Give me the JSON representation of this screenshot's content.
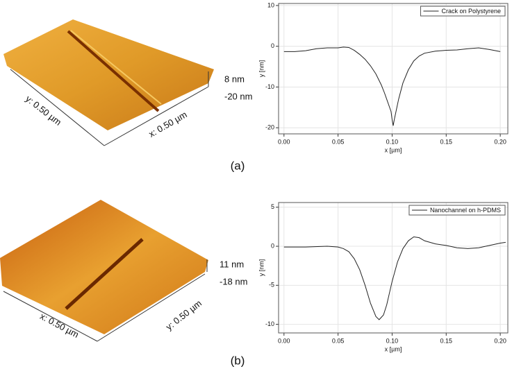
{
  "afm_images": [
    {
      "y_axis": "y: 0.50 µm",
      "x_axis": "x: 0.50 µm",
      "z_max": "8 nm",
      "z_min": "-20 nm",
      "panel": "(a)"
    },
    {
      "x_axis": "x: 0.50 µm",
      "y_axis": "y: 0.50 µm",
      "z_max": "11 nm",
      "z_min": "-18 nm",
      "panel": "(b)"
    }
  ],
  "chart_data": [
    {
      "type": "line",
      "xlabel": "x [µm]",
      "ylabel": "y [nm]",
      "x": [
        0,
        0.01,
        0.02,
        0.03,
        0.04,
        0.05,
        0.055,
        0.06,
        0.065,
        0.07,
        0.075,
        0.08,
        0.085,
        0.09,
        0.093,
        0.095,
        0.097,
        0.099,
        0.1,
        0.101,
        0.102,
        0.104,
        0.106,
        0.108,
        0.11,
        0.115,
        0.12,
        0.125,
        0.13,
        0.14,
        0.15,
        0.16,
        0.17,
        0.18,
        0.19,
        0.2
      ],
      "series": [
        {
          "name": "Crack on Polystyrene",
          "color": "#222222",
          "values": [
            -1.3,
            -1.3,
            -1.1,
            -0.6,
            -0.4,
            -0.4,
            -0.2,
            -0.3,
            -1,
            -2,
            -3.2,
            -4.8,
            -6.8,
            -9.5,
            -11.5,
            -13,
            -14.5,
            -16,
            -18,
            -19.5,
            -18,
            -15.5,
            -13,
            -11,
            -9,
            -5.8,
            -3.6,
            -2.4,
            -1.7,
            -1.2,
            -1,
            -0.9,
            -0.6,
            -0.4,
            -0.8,
            -1.3
          ]
        }
      ],
      "xlim": [
        -0.005,
        0.207
      ],
      "ylim": [
        -21.5,
        10.5
      ],
      "xticks": [
        {
          "value": 0,
          "label": "0.00"
        },
        0.05,
        {
          "value": 0.1,
          "label": "0.10"
        },
        0.15,
        {
          "value": 0.2,
          "label": "0.20"
        }
      ],
      "yticks": [
        -20,
        -10,
        0,
        10
      ],
      "grid": true,
      "legend": "top-right"
    },
    {
      "type": "line",
      "xlabel": "x [µm]",
      "ylabel": "y [nm]",
      "x": [
        0,
        0.02,
        0.04,
        0.05,
        0.055,
        0.06,
        0.065,
        0.07,
        0.075,
        0.08,
        0.085,
        0.088,
        0.092,
        0.095,
        0.1,
        0.105,
        0.11,
        0.115,
        0.12,
        0.125,
        0.13,
        0.14,
        0.15,
        0.16,
        0.17,
        0.18,
        0.19,
        0.2,
        0.205
      ],
      "series": [
        {
          "name": "Nanochannel on h-PDMS",
          "color": "#222222",
          "values": [
            -0.1,
            -0.1,
            0,
            -0.1,
            -0.3,
            -0.7,
            -1.6,
            -3,
            -5,
            -7.3,
            -9,
            -9.4,
            -8.8,
            -7.5,
            -4.5,
            -2,
            -0.3,
            0.7,
            1.2,
            1.1,
            0.7,
            0.3,
            0.1,
            -0.2,
            -0.3,
            -0.2,
            0.1,
            0.4,
            0.5
          ]
        }
      ],
      "xlim": [
        -0.005,
        0.207
      ],
      "ylim": [
        -11.1,
        5.6
      ],
      "xticks": [
        {
          "value": 0,
          "label": "0.00"
        },
        0.05,
        {
          "value": 0.1,
          "label": "0.10"
        },
        0.15,
        {
          "value": 0.2,
          "label": "0.20"
        }
      ],
      "yticks": [
        -10,
        -5,
        0,
        5
      ],
      "grid": true,
      "legend": "top-right"
    }
  ]
}
